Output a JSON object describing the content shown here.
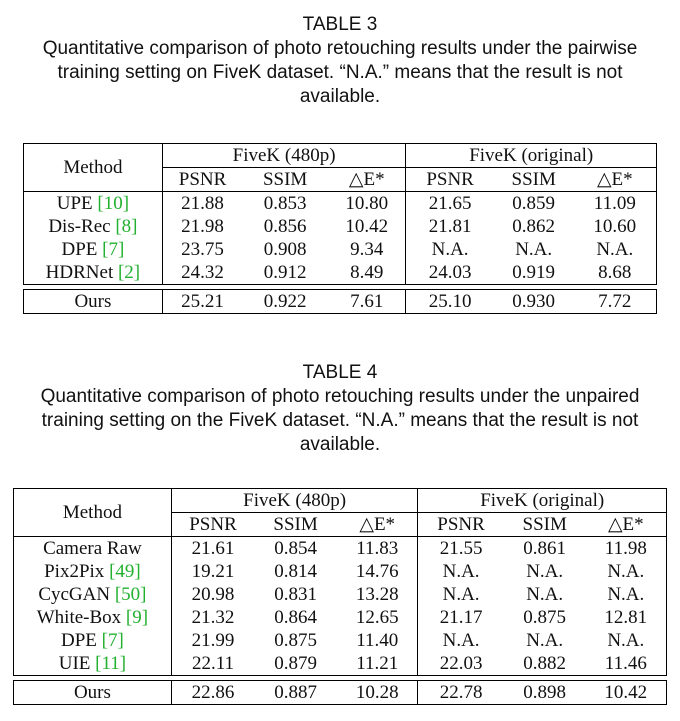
{
  "table3": {
    "number": "TABLE 3",
    "caption_lines": [
      "Quantitative comparison of photo retouching results under the pairwise",
      "training setting on FiveK dataset. “N.A.” means that the result is not",
      "available."
    ],
    "header": {
      "method": "Method",
      "group1": "FiveK (480p)",
      "group2": "FiveK (original)",
      "psnr": "PSNR",
      "ssim": "SSIM",
      "de": "△E*"
    },
    "rows": [
      {
        "method": "UPE",
        "ref": "[10]",
        "v": [
          "21.88",
          "0.853",
          "10.80",
          "21.65",
          "0.859",
          "11.09"
        ]
      },
      {
        "method": "Dis-Rec",
        "ref": "[8]",
        "v": [
          "21.98",
          "0.856",
          "10.42",
          "21.81",
          "0.862",
          "10.60"
        ]
      },
      {
        "method": "DPE",
        "ref": "[7]",
        "v": [
          "23.75",
          "0.908",
          "9.34",
          "N.A.",
          "N.A.",
          "N.A."
        ]
      },
      {
        "method": "HDRNet",
        "ref": "[2]",
        "v": [
          "24.32",
          "0.912",
          "8.49",
          "24.03",
          "0.919",
          "8.68"
        ]
      }
    ],
    "ours": {
      "method": "Ours",
      "v": [
        "25.21",
        "0.922",
        "7.61",
        "25.10",
        "0.930",
        "7.72"
      ]
    }
  },
  "table4": {
    "number": "TABLE 4",
    "caption_lines": [
      "Quantitative comparison of photo retouching results under the unpaired",
      "training setting on the FiveK dataset. “N.A.” means that the result is not",
      "available."
    ],
    "header": {
      "method": "Method",
      "group1": "FiveK (480p)",
      "group2": "FiveK (original)",
      "psnr": "PSNR",
      "ssim": "SSIM",
      "de": "△E*"
    },
    "rows": [
      {
        "method": "Camera Raw",
        "ref": "",
        "v": [
          "21.61",
          "0.854",
          "11.83",
          "21.55",
          "0.861",
          "11.98"
        ]
      },
      {
        "method": "Pix2Pix",
        "ref": "[49]",
        "v": [
          "19.21",
          "0.814",
          "14.76",
          "N.A.",
          "N.A.",
          "N.A."
        ]
      },
      {
        "method": "CycGAN",
        "ref": "[50]",
        "v": [
          "20.98",
          "0.831",
          "13.28",
          "N.A.",
          "N.A.",
          "N.A."
        ]
      },
      {
        "method": "White-Box",
        "ref": "[9]",
        "v": [
          "21.32",
          "0.864",
          "12.65",
          "21.17",
          "0.875",
          "12.81"
        ]
      },
      {
        "method": "DPE",
        "ref": "[7]",
        "v": [
          "21.99",
          "0.875",
          "11.40",
          "N.A.",
          "N.A.",
          "N.A."
        ]
      },
      {
        "method": "UIE",
        "ref": "[11]",
        "v": [
          "22.11",
          "0.879",
          "11.21",
          "22.03",
          "0.882",
          "11.46"
        ]
      }
    ],
    "ours": {
      "method": "Ours",
      "v": [
        "22.86",
        "0.887",
        "10.28",
        "22.78",
        "0.898",
        "10.42"
      ]
    }
  }
}
